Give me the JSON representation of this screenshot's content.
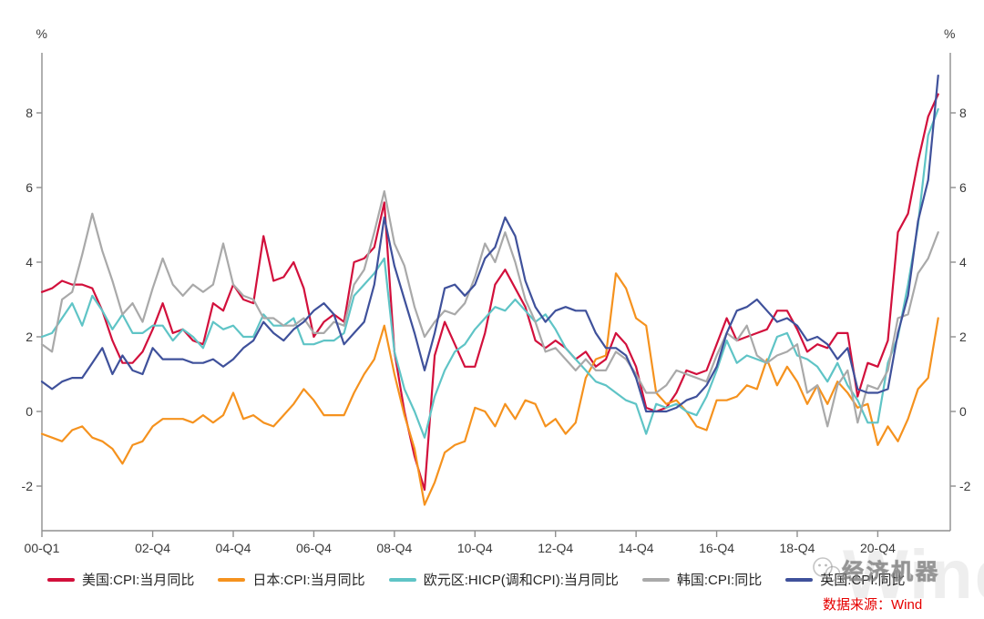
{
  "axes": {
    "y_left_unit": "%",
    "y_right_unit": "%",
    "y_ticks": [
      8,
      6,
      4,
      2,
      0,
      -2
    ],
    "x_ticks": [
      {
        "label": "00-Q1",
        "q": 0
      },
      {
        "label": "02-Q4",
        "q": 11
      },
      {
        "label": "04-Q4",
        "q": 19
      },
      {
        "label": "06-Q4",
        "q": 27
      },
      {
        "label": "08-Q4",
        "q": 35
      },
      {
        "label": "10-Q4",
        "q": 43
      },
      {
        "label": "12-Q4",
        "q": 51
      },
      {
        "label": "14-Q4",
        "q": 59
      },
      {
        "label": "16-Q4",
        "q": 67
      },
      {
        "label": "18-Q4",
        "q": 75
      },
      {
        "label": "20-Q4",
        "q": 83
      }
    ],
    "axis_color": "#8f8f8f",
    "tick_label_color": "#3a3a3a"
  },
  "chart_data": {
    "type": "line",
    "title": "",
    "xlabel": "",
    "ylabel": "%",
    "x_unit": "quarter",
    "x_start": "2000-Q1",
    "x_end": "2022-Q2",
    "ylim": [
      -3.2,
      9.6
    ],
    "grid": false,
    "legend_position": "bottom",
    "series": [
      {
        "name": "美国:CPI:当月同比",
        "color": "#d2103c",
        "values": [
          3.2,
          3.3,
          3.5,
          3.4,
          3.4,
          3.3,
          2.7,
          1.9,
          1.3,
          1.3,
          1.6,
          2.2,
          2.9,
          2.1,
          2.2,
          1.9,
          1.8,
          2.9,
          2.7,
          3.4,
          3.0,
          2.9,
          4.7,
          3.5,
          3.6,
          4.0,
          3.3,
          2.0,
          2.4,
          2.6,
          2.4,
          4.0,
          4.1,
          4.4,
          5.6,
          1.6,
          0.0,
          -1.2,
          -2.1,
          1.5,
          2.4,
          1.8,
          1.2,
          1.2,
          2.1,
          3.4,
          3.8,
          3.3,
          2.8,
          1.9,
          1.7,
          1.9,
          1.7,
          1.4,
          1.6,
          1.2,
          1.4,
          2.1,
          1.8,
          1.2,
          0.1,
          0.0,
          0.1,
          0.5,
          1.1,
          1.0,
          1.1,
          1.8,
          2.5,
          1.9,
          2.0,
          2.1,
          2.2,
          2.7,
          2.7,
          2.2,
          1.6,
          1.8,
          1.7,
          2.1,
          2.1,
          0.4,
          1.3,
          1.2,
          1.9,
          4.8,
          5.3,
          6.7,
          7.9,
          8.5
        ]
      },
      {
        "name": "日本:CPI:当月同比",
        "color": "#f5921e",
        "values": [
          -0.6,
          -0.7,
          -0.8,
          -0.5,
          -0.4,
          -0.7,
          -0.8,
          -1.0,
          -1.4,
          -0.9,
          -0.8,
          -0.4,
          -0.2,
          -0.2,
          -0.2,
          -0.3,
          -0.1,
          -0.3,
          -0.1,
          0.5,
          -0.2,
          -0.1,
          -0.3,
          -0.4,
          -0.1,
          0.2,
          0.6,
          0.3,
          -0.1,
          -0.1,
          -0.1,
          0.5,
          1.0,
          1.4,
          2.3,
          1.0,
          -0.1,
          -1.0,
          -2.5,
          -1.9,
          -1.1,
          -0.9,
          -0.8,
          0.1,
          0.0,
          -0.4,
          0.2,
          -0.2,
          0.3,
          0.2,
          -0.4,
          -0.2,
          -0.6,
          -0.3,
          0.9,
          1.4,
          1.5,
          3.7,
          3.3,
          2.5,
          2.3,
          0.5,
          0.2,
          0.3,
          0.0,
          -0.4,
          -0.5,
          0.3,
          0.3,
          0.4,
          0.7,
          0.6,
          1.4,
          0.7,
          1.2,
          0.8,
          0.2,
          0.7,
          0.2,
          0.8,
          0.5,
          0.1,
          0.2,
          -0.9,
          -0.4,
          -0.8,
          -0.2,
          0.6,
          0.9,
          2.5
        ]
      },
      {
        "name": "欧元区:HICP(调和CPI):当月同比",
        "color": "#5fc4c6",
        "values": [
          2.0,
          2.1,
          2.5,
          2.9,
          2.3,
          3.1,
          2.7,
          2.2,
          2.6,
          2.1,
          2.1,
          2.3,
          2.3,
          1.9,
          2.2,
          2.0,
          1.7,
          2.4,
          2.2,
          2.3,
          2.0,
          2.0,
          2.6,
          2.3,
          2.3,
          2.5,
          1.8,
          1.8,
          1.9,
          1.9,
          2.1,
          3.1,
          3.4,
          3.7,
          4.1,
          1.6,
          0.6,
          0.0,
          -0.7,
          0.4,
          1.1,
          1.6,
          1.8,
          2.2,
          2.5,
          2.8,
          2.7,
          3.0,
          2.7,
          2.4,
          2.6,
          2.2,
          1.7,
          1.4,
          1.1,
          0.8,
          0.7,
          0.5,
          0.3,
          0.2,
          -0.6,
          0.2,
          0.1,
          0.2,
          0.0,
          -0.1,
          0.4,
          1.1,
          1.9,
          1.3,
          1.5,
          1.4,
          1.3,
          2.0,
          2.1,
          1.5,
          1.4,
          1.2,
          0.8,
          1.3,
          0.7,
          0.3,
          -0.3,
          -0.3,
          1.3,
          2.0,
          3.4,
          5.0,
          7.4,
          8.1
        ]
      },
      {
        "name": "韩国:CPI:同比",
        "color": "#a9a9a9",
        "values": [
          1.8,
          1.6,
          3.0,
          3.2,
          4.2,
          5.3,
          4.3,
          3.5,
          2.6,
          2.9,
          2.4,
          3.3,
          4.1,
          3.4,
          3.1,
          3.4,
          3.2,
          3.4,
          4.5,
          3.4,
          3.1,
          3.0,
          2.5,
          2.5,
          2.3,
          2.3,
          2.5,
          2.1,
          2.1,
          2.4,
          2.3,
          3.4,
          3.8,
          4.8,
          5.9,
          4.5,
          3.9,
          2.8,
          2.0,
          2.4,
          2.7,
          2.6,
          2.9,
          3.6,
          4.5,
          4.0,
          4.8,
          4.0,
          3.0,
          2.4,
          1.6,
          1.7,
          1.4,
          1.1,
          1.4,
          1.1,
          1.1,
          1.6,
          1.4,
          1.0,
          0.5,
          0.5,
          0.7,
          1.1,
          1.0,
          0.9,
          0.8,
          1.5,
          2.1,
          1.9,
          2.3,
          1.5,
          1.3,
          1.5,
          1.6,
          1.8,
          0.5,
          0.7,
          -0.4,
          0.7,
          1.1,
          -0.3,
          0.7,
          0.6,
          1.1,
          2.5,
          2.6,
          3.7,
          4.1,
          4.8
        ]
      },
      {
        "name": "英国:CPI:同比",
        "color": "#3f519b",
        "values": [
          0.8,
          0.6,
          0.8,
          0.9,
          0.9,
          1.3,
          1.7,
          1.0,
          1.5,
          1.1,
          1.0,
          1.7,
          1.4,
          1.4,
          1.4,
          1.3,
          1.3,
          1.4,
          1.2,
          1.4,
          1.7,
          1.9,
          2.4,
          2.1,
          1.9,
          2.2,
          2.4,
          2.7,
          2.9,
          2.6,
          1.8,
          2.1,
          2.4,
          3.4,
          5.2,
          3.9,
          3.0,
          2.1,
          1.1,
          2.1,
          3.3,
          3.4,
          3.1,
          3.4,
          4.1,
          4.4,
          5.2,
          4.7,
          3.5,
          2.8,
          2.4,
          2.7,
          2.8,
          2.7,
          2.7,
          2.1,
          1.7,
          1.7,
          1.5,
          0.9,
          0.0,
          0.0,
          0.0,
          0.1,
          0.3,
          0.4,
          0.7,
          1.2,
          2.1,
          2.7,
          2.8,
          3.0,
          2.7,
          2.4,
          2.5,
          2.3,
          1.9,
          2.0,
          1.8,
          1.4,
          1.7,
          0.6,
          0.5,
          0.5,
          0.6,
          2.1,
          3.1,
          5.1,
          6.2,
          9.0
        ]
      }
    ]
  },
  "watermark": {
    "account_text": "经济机器",
    "brand_text": "Wind"
  },
  "source": {
    "text": "数据来源：Wind"
  }
}
